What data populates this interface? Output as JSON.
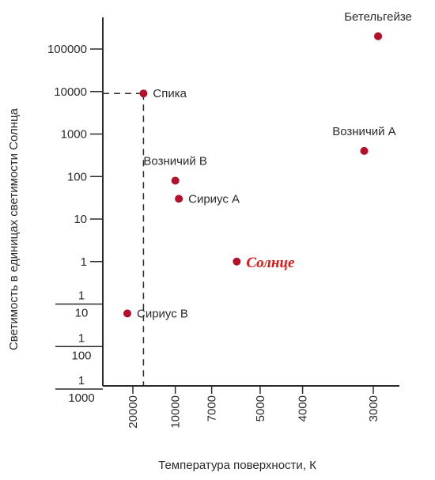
{
  "chart_data": {
    "type": "scatter",
    "xlabel": "Температура поверхности, К",
    "ylabel": "Светимость в единицах светимости Солнца",
    "x_axis": {
      "scale": "reciprocal",
      "reversed": true,
      "ticks": [
        20000,
        10000,
        7000,
        5000,
        4000,
        3000
      ],
      "tick_labels": [
        "20000",
        "10000",
        "7000",
        "5000",
        "4000",
        "3000"
      ]
    },
    "y_axis": {
      "scale": "log",
      "ticks": [
        0.001,
        0.01,
        0.1,
        1,
        10,
        100,
        1000,
        10000,
        100000
      ],
      "tick_labels": [
        {
          "num": "1",
          "den": "1000"
        },
        {
          "num": "1",
          "den": "100"
        },
        {
          "num": "1",
          "den": "10"
        },
        {
          "text": "1"
        },
        {
          "text": "10"
        },
        {
          "text": "100"
        },
        {
          "text": "1000"
        },
        {
          "text": "10000"
        },
        {
          "text": "100000"
        }
      ]
    },
    "grid": false,
    "points": [
      {
        "label": "Бетельгейзе",
        "temperature": 2950,
        "luminosity": 200000,
        "label_pos": "above"
      },
      {
        "label": "Спика",
        "temperature": 16000,
        "luminosity": 9000,
        "label_pos": "right"
      },
      {
        "label": "Возничий А",
        "temperature": 3100,
        "luminosity": 400,
        "label_pos": "above"
      },
      {
        "label": "Возничий В",
        "temperature": 10000,
        "luminosity": 80,
        "label_pos": "above"
      },
      {
        "label": "Сириус А",
        "temperature": 9600,
        "luminosity": 30,
        "label_pos": "right"
      },
      {
        "label": "Солнце",
        "temperature": 5800,
        "luminosity": 1,
        "label_pos": "right",
        "highlight": true
      },
      {
        "label": "Сириус В",
        "temperature": 23000,
        "luminosity": 0.06,
        "label_pos": "right"
      }
    ],
    "reference_lines": [
      {
        "from_point": "Спика",
        "to": [
          "y-axis",
          "x-axis"
        ],
        "style": "dashed"
      }
    ],
    "colors": {
      "point": "#b5102a",
      "highlight_text": "#e01515",
      "axis": "#2a2a2a"
    }
  }
}
